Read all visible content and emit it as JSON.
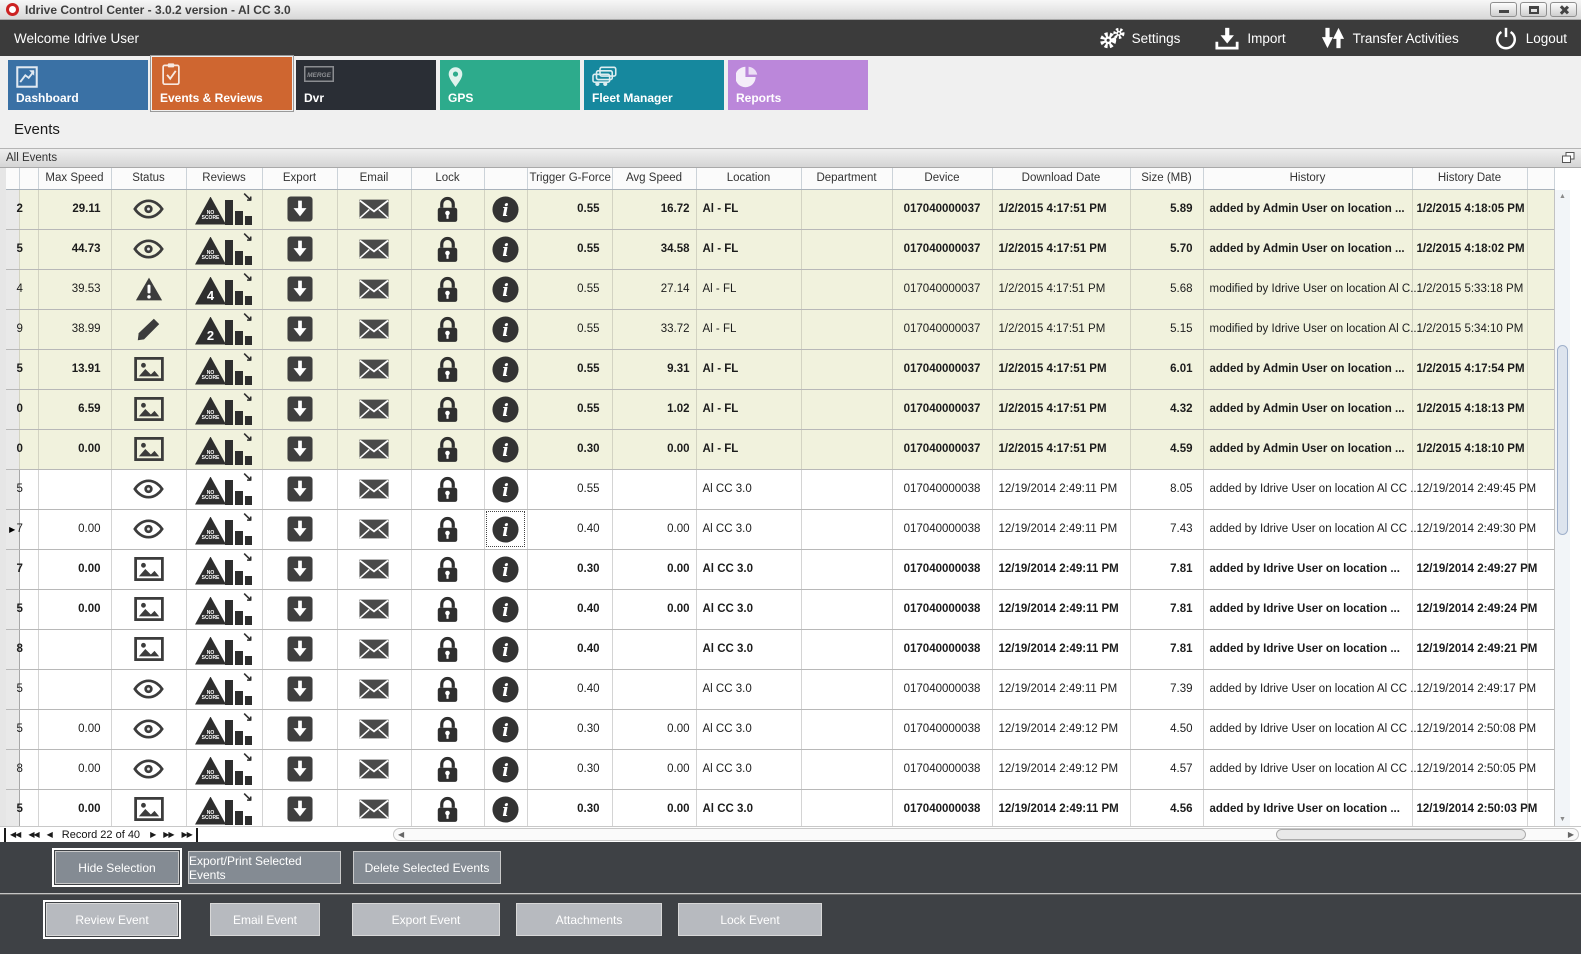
{
  "window": {
    "title": "Idrive Control Center - 3.0.2 version - Al CC 3.0"
  },
  "toolbar": {
    "welcome": "Welcome Idrive User",
    "actions": [
      {
        "label": "Settings",
        "icon": "gears"
      },
      {
        "label": "Import",
        "icon": "import"
      },
      {
        "label": "Transfer Activities",
        "icon": "transfer"
      },
      {
        "label": "Logout",
        "icon": "power"
      }
    ]
  },
  "tabs": [
    {
      "label": "Dashboard",
      "color": "#3a71a5",
      "icon": "dashboard",
      "selected": false
    },
    {
      "label": "Events & Reviews",
      "color": "#cf6630",
      "icon": "clipboard",
      "selected": true
    },
    {
      "label": "Dvr",
      "color": "#2a2e35",
      "icon": "merge",
      "selected": false
    },
    {
      "label": "GPS",
      "color": "#2dab8c",
      "icon": "pin",
      "selected": false
    },
    {
      "label": "Fleet Manager",
      "color": "#16889e",
      "icon": "fleet",
      "selected": false
    },
    {
      "label": "Reports",
      "color": "#bb87da",
      "icon": "pie",
      "selected": false
    }
  ],
  "page": {
    "heading": "Events",
    "group_title": "All Events"
  },
  "table": {
    "columns": [
      "",
      "",
      "Max Speed",
      "Status",
      "Reviews",
      "Export",
      "Email",
      "Lock",
      "",
      "Trigger G-Force",
      "Avg Speed",
      "Location",
      "Department",
      "Device",
      "Download Date",
      "Size (MB)",
      "History",
      "History Date",
      ""
    ],
    "rows": [
      {
        "id_digit": "2",
        "max_speed": "29.11",
        "status_icon": "eye",
        "review": "no-score",
        "trigger": "0.55",
        "avg_speed": "16.72",
        "location": "Al - FL",
        "department": "",
        "device": "017040000037",
        "download_date": "1/2/2015 4:17:51 PM",
        "size_mb": "5.89",
        "history": "added by Admin User on location ...",
        "history_date": "1/2/2015 4:18:05 PM",
        "bold": true,
        "highlight": true,
        "current": false,
        "focus_info": false
      },
      {
        "id_digit": "5",
        "max_speed": "44.73",
        "status_icon": "eye",
        "review": "no-score",
        "trigger": "0.55",
        "avg_speed": "34.58",
        "location": "Al - FL",
        "department": "",
        "device": "017040000037",
        "download_date": "1/2/2015 4:17:51 PM",
        "size_mb": "5.70",
        "history": "added by Admin User on location ...",
        "history_date": "1/2/2015 4:18:02 PM",
        "bold": true,
        "highlight": true,
        "current": false,
        "focus_info": false
      },
      {
        "id_digit": "4",
        "max_speed": "39.53",
        "status_icon": "warning",
        "review": "4",
        "trigger": "0.55",
        "avg_speed": "27.14",
        "location": "Al - FL",
        "department": "",
        "device": "017040000037",
        "download_date": "1/2/2015 4:17:51 PM",
        "size_mb": "5.68",
        "history": "modified by Idrive User on location Al C...",
        "history_date": "1/2/2015 5:33:18 PM",
        "bold": false,
        "highlight": true,
        "current": false,
        "focus_info": false
      },
      {
        "id_digit": "9",
        "max_speed": "38.99",
        "status_icon": "pencil",
        "review": "2",
        "trigger": "0.55",
        "avg_speed": "33.72",
        "location": "Al - FL",
        "department": "",
        "device": "017040000037",
        "download_date": "1/2/2015 4:17:51 PM",
        "size_mb": "5.15",
        "history": "modified by Idrive User on location Al C...",
        "history_date": "1/2/2015 5:34:10 PM",
        "bold": false,
        "highlight": true,
        "current": false,
        "focus_info": false
      },
      {
        "id_digit": "5",
        "max_speed": "13.91",
        "status_icon": "image",
        "review": "no-score",
        "trigger": "0.55",
        "avg_speed": "9.31",
        "location": "Al - FL",
        "department": "",
        "device": "017040000037",
        "download_date": "1/2/2015 4:17:51 PM",
        "size_mb": "6.01",
        "history": "added by Admin User on location ...",
        "history_date": "1/2/2015 4:17:54 PM",
        "bold": true,
        "highlight": true,
        "current": false,
        "focus_info": false
      },
      {
        "id_digit": "0",
        "max_speed": "6.59",
        "status_icon": "image",
        "review": "no-score",
        "trigger": "0.55",
        "avg_speed": "1.02",
        "location": "Al - FL",
        "department": "",
        "device": "017040000037",
        "download_date": "1/2/2015 4:17:51 PM",
        "size_mb": "4.32",
        "history": "added by Admin User on location ...",
        "history_date": "1/2/2015 4:18:13 PM",
        "bold": true,
        "highlight": true,
        "current": false,
        "focus_info": false
      },
      {
        "id_digit": "0",
        "max_speed": "0.00",
        "status_icon": "image",
        "review": "no-score",
        "trigger": "0.30",
        "avg_speed": "0.00",
        "location": "Al - FL",
        "department": "",
        "device": "017040000037",
        "download_date": "1/2/2015 4:17:51 PM",
        "size_mb": "4.59",
        "history": "added by Admin User on location ...",
        "history_date": "1/2/2015 4:18:10 PM",
        "bold": true,
        "highlight": true,
        "current": false,
        "focus_info": false
      },
      {
        "id_digit": "5",
        "max_speed": "",
        "status_icon": "eye",
        "review": "no-score",
        "trigger": "0.55",
        "avg_speed": "",
        "location": "Al CC 3.0",
        "department": "",
        "device": "017040000038",
        "download_date": "12/19/2014 2:49:11 PM",
        "size_mb": "8.05",
        "history": "added by Idrive User on location Al CC ...",
        "history_date": "12/19/2014 2:49:45 PM",
        "bold": false,
        "highlight": false,
        "current": false,
        "focus_info": false
      },
      {
        "id_digit": "7",
        "max_speed": "0.00",
        "status_icon": "eye",
        "review": "no-score",
        "trigger": "0.40",
        "avg_speed": "0.00",
        "location": "Al CC 3.0",
        "department": "",
        "device": "017040000038",
        "download_date": "12/19/2014 2:49:11 PM",
        "size_mb": "7.43",
        "history": "added by Idrive User on location Al CC ...",
        "history_date": "12/19/2014 2:49:30 PM",
        "bold": false,
        "highlight": false,
        "current": true,
        "focus_info": true
      },
      {
        "id_digit": "7",
        "max_speed": "0.00",
        "status_icon": "image",
        "review": "no-score",
        "trigger": "0.30",
        "avg_speed": "0.00",
        "location": "Al CC 3.0",
        "department": "",
        "device": "017040000038",
        "download_date": "12/19/2014 2:49:11 PM",
        "size_mb": "7.81",
        "history": "added by Idrive User on location ...",
        "history_date": "12/19/2014 2:49:27 PM",
        "bold": true,
        "highlight": false,
        "current": false,
        "focus_info": false
      },
      {
        "id_digit": "5",
        "max_speed": "0.00",
        "status_icon": "image",
        "review": "no-score",
        "trigger": "0.40",
        "avg_speed": "0.00",
        "location": "Al CC 3.0",
        "department": "",
        "device": "017040000038",
        "download_date": "12/19/2014 2:49:11 PM",
        "size_mb": "7.81",
        "history": "added by Idrive User on location ...",
        "history_date": "12/19/2014 2:49:24 PM",
        "bold": true,
        "highlight": false,
        "current": false,
        "focus_info": false
      },
      {
        "id_digit": "8",
        "max_speed": "",
        "status_icon": "image",
        "review": "no-score",
        "trigger": "0.40",
        "avg_speed": "",
        "location": "Al CC 3.0",
        "department": "",
        "device": "017040000038",
        "download_date": "12/19/2014 2:49:11 PM",
        "size_mb": "7.81",
        "history": "added by Idrive User on location ...",
        "history_date": "12/19/2014 2:49:21 PM",
        "bold": true,
        "highlight": false,
        "current": false,
        "focus_info": false
      },
      {
        "id_digit": "5",
        "max_speed": "",
        "status_icon": "eye",
        "review": "no-score",
        "trigger": "0.40",
        "avg_speed": "",
        "location": "Al CC 3.0",
        "department": "",
        "device": "017040000038",
        "download_date": "12/19/2014 2:49:11 PM",
        "size_mb": "7.39",
        "history": "added by Idrive User on location Al CC ...",
        "history_date": "12/19/2014 2:49:17 PM",
        "bold": false,
        "highlight": false,
        "current": false,
        "focus_info": false
      },
      {
        "id_digit": "5",
        "max_speed": "0.00",
        "status_icon": "eye",
        "review": "no-score",
        "trigger": "0.30",
        "avg_speed": "0.00",
        "location": "Al CC 3.0",
        "department": "",
        "device": "017040000038",
        "download_date": "12/19/2014 2:49:12 PM",
        "size_mb": "4.50",
        "history": "added by Idrive User on location Al CC ...",
        "history_date": "12/19/2014 2:50:08 PM",
        "bold": false,
        "highlight": false,
        "current": false,
        "focus_info": false
      },
      {
        "id_digit": "8",
        "max_speed": "0.00",
        "status_icon": "eye",
        "review": "no-score",
        "trigger": "0.30",
        "avg_speed": "0.00",
        "location": "Al CC 3.0",
        "department": "",
        "device": "017040000038",
        "download_date": "12/19/2014 2:49:12 PM",
        "size_mb": "4.57",
        "history": "added by Idrive User on location Al CC ...",
        "history_date": "12/19/2014 2:50:05 PM",
        "bold": false,
        "highlight": false,
        "current": false,
        "focus_info": false
      },
      {
        "id_digit": "5",
        "max_speed": "0.00",
        "status_icon": "image",
        "review": "no-score",
        "trigger": "0.30",
        "avg_speed": "0.00",
        "location": "Al CC 3.0",
        "department": "",
        "device": "017040000038",
        "download_date": "12/19/2014 2:49:11 PM",
        "size_mb": "4.56",
        "history": "added by Idrive User on location ...",
        "history_date": "12/19/2014 2:50:03 PM",
        "bold": true,
        "highlight": false,
        "current": false,
        "focus_info": false
      }
    ]
  },
  "record_bar": {
    "label": "Record 22 of 40"
  },
  "selection_actions": [
    {
      "label": "Hide Selection",
      "focused": true
    },
    {
      "label": "Export/Print Selected Events",
      "focused": false
    },
    {
      "label": "Delete Selected  Events",
      "focused": false
    }
  ],
  "event_actions": [
    {
      "label": "Review Event",
      "focused": true
    },
    {
      "label": "Email Event",
      "focused": false
    },
    {
      "label": "Export Event",
      "focused": false
    },
    {
      "label": "Attachments",
      "focused": false
    },
    {
      "label": "Lock Event",
      "focused": false
    }
  ],
  "colors": {
    "toolbar_bg": "#3b3b3b",
    "highlight_row": "#f1f2dd",
    "accent": "#cf6630",
    "panel_bg": "#3e4145",
    "button_dark": "#848b93",
    "button_light": "#b7babf"
  }
}
